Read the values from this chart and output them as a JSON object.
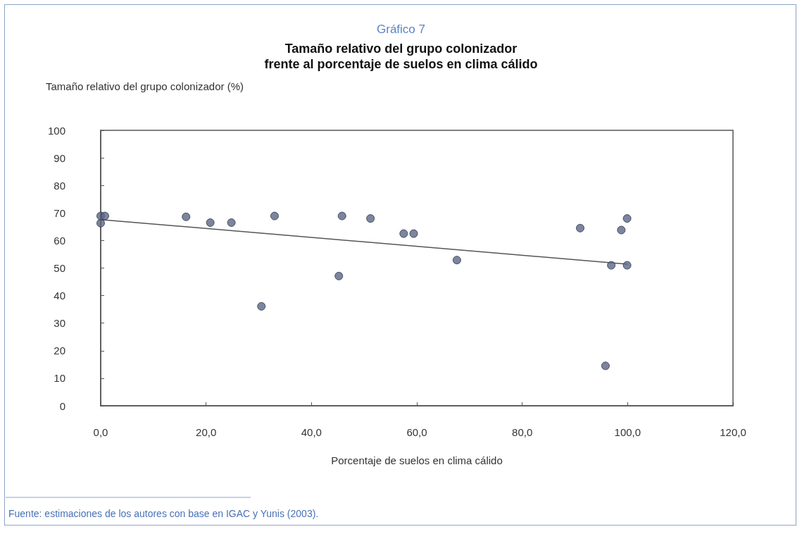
{
  "chart_data": {
    "type": "scatter",
    "title": "Gráfico 7",
    "subtitle": "Tamaño relativo del grupo colonizador\nfrente al porcentaje de suelos en clima cálido",
    "ylabel": "Tamaño relativo del grupo colonizador (%)",
    "xlabel": "Porcentaje de suelos en clima cálido",
    "annotations": [
      "Fuente: estimaciones de los autores con base en IGAC y Yunis (2003)."
    ],
    "series": [
      {
        "marker": "circle",
        "color": "#5b6684",
        "x": [
          0,
          0,
          0.8,
          16.2,
          20.8,
          24.8,
          30.5,
          33.0,
          45.8,
          45.2,
          51.2,
          57.5,
          59.4,
          67.6,
          91.0,
          99.9,
          98.8,
          96.9,
          99.9,
          95.8
        ],
        "values": [
          66.3,
          68.9,
          68.9,
          68.6,
          66.5,
          66.5,
          36.1,
          68.9,
          68.9,
          47.1,
          68.0,
          62.5,
          62.5,
          52.9,
          64.5,
          68.0,
          63.8,
          51.0,
          51.0,
          14.5
        ]
      },
      {
        "type": "line",
        "marker": "none",
        "color": "#555555",
        "x": [
          0,
          100
        ],
        "values": [
          67.6,
          51.4
        ]
      }
    ],
    "xlim": [
      0,
      120
    ],
    "xticks": [
      {
        "value": 0,
        "label": "0,0"
      },
      {
        "value": 20,
        "label": "20,0"
      },
      {
        "value": 40,
        "label": "40,0"
      },
      {
        "value": 60,
        "label": "60,0"
      },
      {
        "value": 80,
        "label": "80,0"
      },
      {
        "value": 100,
        "label": "100,0"
      },
      {
        "value": 120,
        "label": "120,0"
      }
    ],
    "ylim": [
      0,
      100
    ],
    "yticks": [
      0,
      10,
      20,
      30,
      40,
      50,
      60,
      70,
      80,
      90,
      100
    ],
    "grid": false
  }
}
